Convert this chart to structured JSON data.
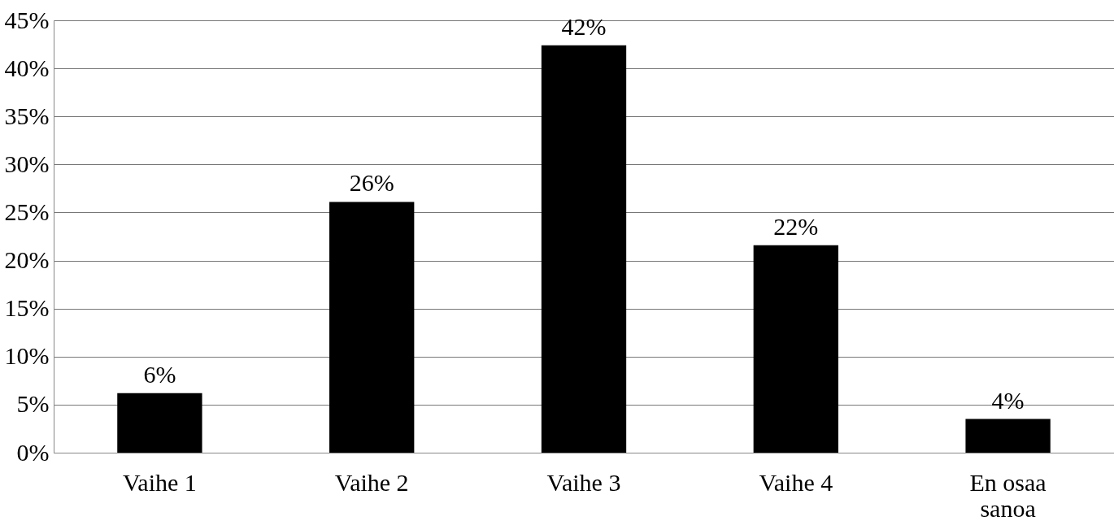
{
  "chart_data": {
    "type": "bar",
    "categories": [
      "Vaihe 1",
      "Vaihe 2",
      "Vaihe 3",
      "Vaihe 4",
      "En osaa sanoa"
    ],
    "values": [
      6.2,
      26.1,
      42.4,
      21.6,
      3.5
    ],
    "value_labels": [
      "6%",
      "26%",
      "42%",
      "22%",
      "4%"
    ],
    "color": "#000000",
    "ylim": [
      0,
      45
    ],
    "yticks": [
      {
        "value": 0,
        "label": "0%"
      },
      {
        "value": 5,
        "label": "5%"
      },
      {
        "value": 10,
        "label": "10%"
      },
      {
        "value": 15,
        "label": "15%"
      },
      {
        "value": 20,
        "label": "20%"
      },
      {
        "value": 25,
        "label": "25%"
      },
      {
        "value": 30,
        "label": "30%"
      },
      {
        "value": 35,
        "label": "35%"
      },
      {
        "value": 40,
        "label": "40%"
      },
      {
        "value": 45,
        "label": "45%"
      }
    ],
    "grid": "y"
  }
}
